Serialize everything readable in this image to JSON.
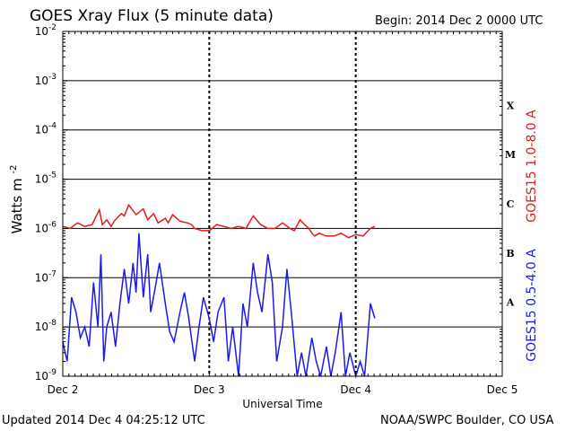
{
  "header": {
    "title": "GOES Xray Flux (5 minute data)",
    "begin": "Begin:  2014 Dec 2 0000 UTC"
  },
  "footer": {
    "updated": "Updated 2014 Dec  4 04:25:12 UTC",
    "credit": "NOAA/SWPC Boulder, CO USA"
  },
  "chart_data": {
    "type": "line",
    "xlabel": "Universal Time",
    "ylabel_base": "Watts m",
    "ylabel_exp": "-2",
    "x_ticks": [
      "Dec 2",
      "Dec 3",
      "Dec 4",
      "Dec 5"
    ],
    "xlim_days": [
      0,
      3
    ],
    "ylog": true,
    "ylim_exponents": [
      -9,
      -2
    ],
    "y_tick_exponents": [
      -2,
      -3,
      -4,
      -5,
      -6,
      -7,
      -8,
      -9
    ],
    "flare_classes": [
      "X",
      "M",
      "C",
      "B",
      "A"
    ],
    "grid": "horizontal at decades; dashed at day boundaries",
    "series": [
      {
        "name": "GOES15 1.0-8.0 A",
        "color": "#e31b1b",
        "x_days": [
          0.0,
          0.05,
          0.1,
          0.15,
          0.2,
          0.25,
          0.27,
          0.3,
          0.33,
          0.35,
          0.4,
          0.42,
          0.45,
          0.5,
          0.55,
          0.58,
          0.62,
          0.65,
          0.7,
          0.72,
          0.75,
          0.8,
          0.85,
          0.88,
          0.9,
          0.95,
          1.0,
          1.02,
          1.05,
          1.1,
          1.15,
          1.2,
          1.25,
          1.3,
          1.35,
          1.4,
          1.45,
          1.5,
          1.55,
          1.58,
          1.62,
          1.65,
          1.68,
          1.7,
          1.72,
          1.75,
          1.8,
          1.85,
          1.9,
          1.95,
          2.0,
          2.05,
          2.1,
          2.13
        ],
        "values": [
          1.1e-06,
          1e-06,
          1.3e-06,
          1.1e-06,
          1.2e-06,
          2.4e-06,
          1.2e-06,
          1.5e-06,
          1.1e-06,
          1.4e-06,
          2e-06,
          1.8e-06,
          3e-06,
          1.9e-06,
          2.5e-06,
          1.5e-06,
          2e-06,
          1.3e-06,
          1.6e-06,
          1.3e-06,
          1.9e-06,
          1.4e-06,
          1.3e-06,
          1.2e-06,
          1e-06,
          9e-07,
          9e-07,
          1e-06,
          1.2e-06,
          1.1e-06,
          1e-06,
          1.1e-06,
          1e-06,
          1.8e-06,
          1.2e-06,
          1e-06,
          1e-06,
          1.3e-06,
          1e-06,
          9e-07,
          1.5e-06,
          1.2e-06,
          1e-06,
          8e-07,
          7e-07,
          8e-07,
          7e-07,
          7e-07,
          8e-07,
          6.5e-07,
          7.5e-07,
          7e-07,
          1e-06,
          1.1e-06
        ]
      },
      {
        "name": "GOES15 0.5-4.0 A",
        "color": "#1a1aee",
        "x_days": [
          0.0,
          0.03,
          0.06,
          0.09,
          0.12,
          0.15,
          0.18,
          0.21,
          0.24,
          0.26,
          0.28,
          0.3,
          0.33,
          0.36,
          0.39,
          0.42,
          0.45,
          0.48,
          0.5,
          0.52,
          0.55,
          0.58,
          0.6,
          0.63,
          0.66,
          0.7,
          0.73,
          0.76,
          0.8,
          0.83,
          0.86,
          0.9,
          0.93,
          0.96,
          1.0,
          1.03,
          1.06,
          1.1,
          1.13,
          1.16,
          1.2,
          1.23,
          1.26,
          1.3,
          1.33,
          1.36,
          1.4,
          1.43,
          1.46,
          1.5,
          1.53,
          1.56,
          1.6,
          1.63,
          1.66,
          1.7,
          1.73,
          1.76,
          1.8,
          1.83,
          1.86,
          1.9,
          1.93,
          1.96,
          2.0,
          2.03,
          2.06,
          2.1,
          2.13
        ],
        "values": [
          5e-09,
          2e-09,
          4e-08,
          2e-08,
          6e-09,
          1e-08,
          4e-09,
          8e-08,
          1e-08,
          3e-07,
          2e-09,
          1e-08,
          2e-08,
          4e-09,
          3e-08,
          1.5e-07,
          3e-08,
          2e-07,
          5e-08,
          8e-07,
          4e-08,
          3e-07,
          2e-08,
          6e-08,
          2e-07,
          3e-08,
          8e-09,
          5e-09,
          2e-08,
          5e-08,
          1.5e-08,
          2e-09,
          1e-08,
          4e-08,
          1.5e-08,
          5e-09,
          2e-08,
          4e-08,
          2e-09,
          1e-08,
          1e-09,
          3e-08,
          1e-08,
          2e-07,
          5e-08,
          2e-08,
          3e-07,
          8e-08,
          2e-09,
          1e-08,
          1.5e-07,
          2e-08,
          1e-09,
          3e-09,
          1e-09,
          6e-09,
          2e-09,
          1e-09,
          4e-09,
          1e-09,
          3e-09,
          2e-08,
          1e-09,
          3e-09,
          1e-09,
          2e-09,
          1e-09,
          3e-08,
          1.5e-08
        ]
      }
    ]
  }
}
